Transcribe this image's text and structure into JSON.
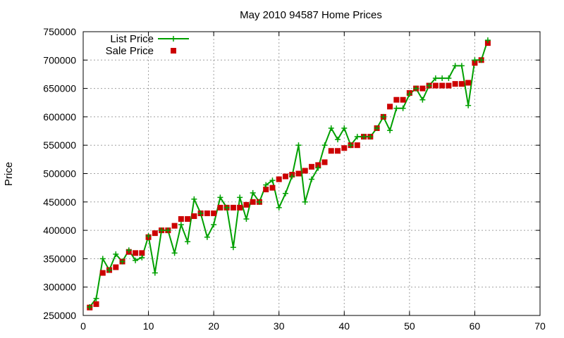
{
  "chart_data": {
    "type": "line",
    "title": "May 2010 94587 Home Prices",
    "ylabel": "Price",
    "xlabel": "",
    "xlim": [
      0,
      70
    ],
    "ylim": [
      250000,
      750000
    ],
    "x_ticks": [
      0,
      10,
      20,
      30,
      40,
      50,
      60,
      70
    ],
    "y_ticks": [
      250000,
      300000,
      350000,
      400000,
      450000,
      500000,
      550000,
      600000,
      650000,
      700000,
      750000
    ],
    "grid": true,
    "legend_position": "top-left",
    "series": [
      {
        "name": "List Price",
        "style": "line-plus",
        "color": "#00a000",
        "x": [
          1,
          2,
          3,
          4,
          5,
          6,
          7,
          8,
          9,
          10,
          11,
          12,
          13,
          14,
          15,
          16,
          17,
          18,
          19,
          20,
          21,
          22,
          23,
          24,
          25,
          26,
          27,
          28,
          29,
          30,
          31,
          32,
          33,
          34,
          35,
          36,
          37,
          38,
          39,
          40,
          41,
          42,
          43,
          44,
          45,
          46,
          47,
          48,
          49,
          50,
          51,
          52,
          53,
          54,
          55,
          56,
          57,
          58,
          59,
          60,
          61,
          62
        ],
        "values": [
          265000,
          280000,
          350000,
          330000,
          358000,
          345000,
          365000,
          347000,
          352000,
          390000,
          325000,
          400000,
          400000,
          360000,
          410000,
          380000,
          455000,
          430000,
          388000,
          410000,
          458000,
          440000,
          370000,
          458000,
          420000,
          466000,
          450000,
          480000,
          488000,
          440000,
          465000,
          495000,
          550000,
          450000,
          490000,
          510000,
          550000,
          580000,
          560000,
          580000,
          550000,
          565000,
          565000,
          565000,
          580000,
          600000,
          576000,
          615000,
          615000,
          640000,
          650000,
          630000,
          655000,
          668000,
          668000,
          668000,
          690000,
          690000,
          620000,
          700000,
          700000,
          735000
        ]
      },
      {
        "name": "Sale Price",
        "style": "square-markers",
        "color": "#cc0000",
        "x": [
          1,
          2,
          3,
          4,
          5,
          6,
          7,
          8,
          9,
          10,
          11,
          12,
          13,
          14,
          15,
          16,
          17,
          18,
          19,
          20,
          21,
          22,
          23,
          24,
          25,
          26,
          27,
          28,
          29,
          30,
          31,
          32,
          33,
          34,
          35,
          36,
          37,
          38,
          39,
          40,
          41,
          42,
          43,
          44,
          45,
          46,
          47,
          48,
          49,
          50,
          51,
          52,
          53,
          54,
          55,
          56,
          57,
          58,
          59,
          60,
          61,
          62
        ],
        "values": [
          264000,
          270000,
          325000,
          330000,
          335000,
          345000,
          362000,
          360000,
          360000,
          388000,
          395000,
          400000,
          400000,
          408000,
          420000,
          420000,
          425000,
          430000,
          430000,
          430000,
          440000,
          440000,
          440000,
          440000,
          445000,
          450000,
          450000,
          472000,
          475000,
          490000,
          495000,
          498000,
          500000,
          505000,
          512000,
          515000,
          520000,
          540000,
          540000,
          545000,
          550000,
          550000,
          565000,
          565000,
          580000,
          600000,
          618000,
          630000,
          630000,
          642000,
          650000,
          650000,
          655000,
          655000,
          655000,
          655000,
          658000,
          658000,
          660000,
          695000,
          700000,
          730000
        ]
      }
    ]
  }
}
